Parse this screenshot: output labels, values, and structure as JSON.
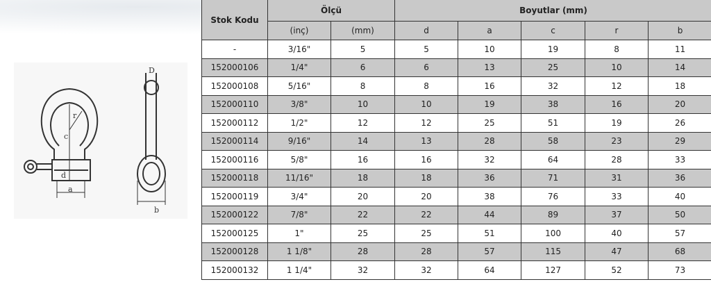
{
  "headers": {
    "stock_code": "Stok Kodu",
    "size": "Ölçü",
    "dimensions": "Boyutlar (mm)",
    "sub": [
      "(inç)",
      "(mm)",
      "d",
      "a",
      "c",
      "r",
      "b"
    ]
  },
  "diagram_labels": {
    "r": "r",
    "c": "c",
    "d": "d",
    "a": "a",
    "b": "b",
    "D": "D"
  },
  "rows": [
    [
      "-",
      "3/16\"",
      "5",
      "5",
      "10",
      "19",
      "8",
      "11"
    ],
    [
      "152000106",
      "1/4\"",
      "6",
      "6",
      "13",
      "25",
      "10",
      "14"
    ],
    [
      "152000108",
      "5/16\"",
      "8",
      "8",
      "16",
      "32",
      "12",
      "18"
    ],
    [
      "152000110",
      "3/8\"",
      "10",
      "10",
      "19",
      "38",
      "16",
      "20"
    ],
    [
      "152000112",
      "1/2\"",
      "12",
      "12",
      "25",
      "51",
      "19",
      "26"
    ],
    [
      "152000114",
      "9/16\"",
      "14",
      "13",
      "28",
      "58",
      "23",
      "29"
    ],
    [
      "152000116",
      "5/8\"",
      "16",
      "16",
      "32",
      "64",
      "28",
      "33"
    ],
    [
      "152000118",
      "11/16\"",
      "18",
      "18",
      "36",
      "71",
      "31",
      "36"
    ],
    [
      "152000119",
      "3/4\"",
      "20",
      "20",
      "38",
      "76",
      "33",
      "40"
    ],
    [
      "152000122",
      "7/8\"",
      "22",
      "22",
      "44",
      "89",
      "37",
      "50"
    ],
    [
      "152000125",
      "1\"",
      "25",
      "25",
      "51",
      "100",
      "40",
      "57"
    ],
    [
      "152000128",
      "1 1/8\"",
      "28",
      "28",
      "57",
      "115",
      "47",
      "68"
    ],
    [
      "152000132",
      "1 1/4\"",
      "32",
      "32",
      "64",
      "127",
      "52",
      "73"
    ]
  ]
}
